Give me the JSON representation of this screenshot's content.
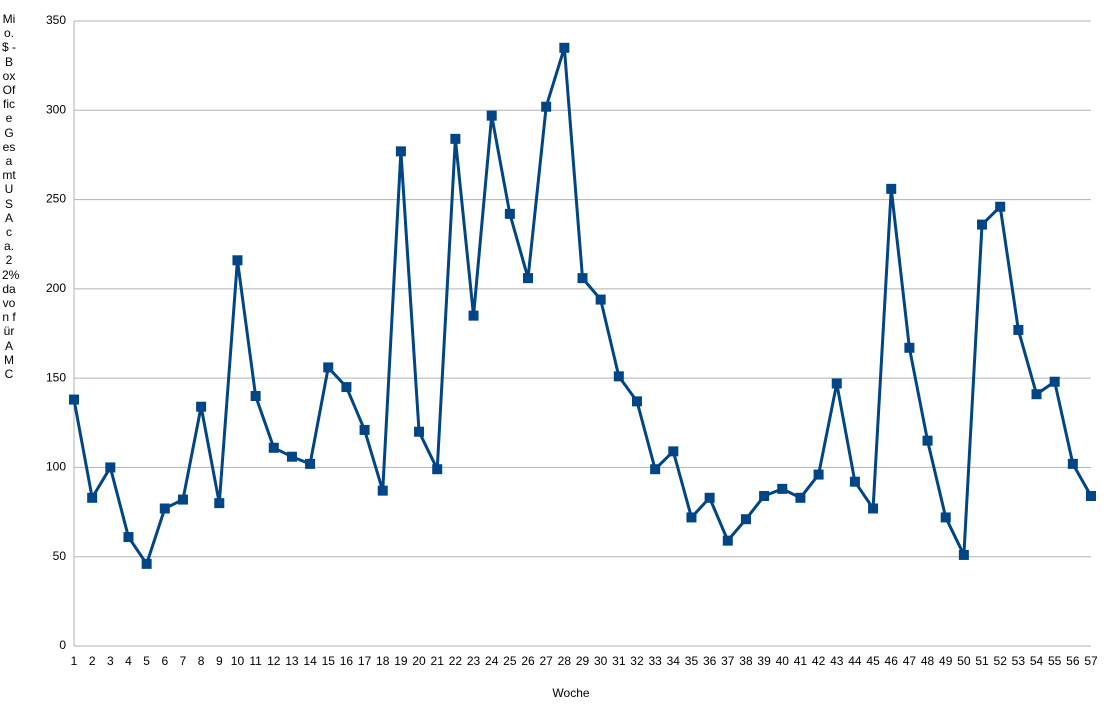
{
  "chart_data": {
    "type": "line",
    "y_label": "Mio. $ - BoxOffice Gesamt USA ca. 22% davon für AMC",
    "x_label": "Woche",
    "categories": [
      "1",
      "2",
      "3",
      "4",
      "5",
      "6",
      "7",
      "8",
      "9",
      "10",
      "11",
      "12",
      "13",
      "14",
      "15",
      "16",
      "17",
      "18",
      "19",
      "20",
      "21",
      "22",
      "23",
      "24",
      "25",
      "26",
      "27",
      "28",
      "29",
      "30",
      "31",
      "32",
      "33",
      "34",
      "35",
      "36",
      "37",
      "38",
      "39",
      "40",
      "41",
      "42",
      "43",
      "44",
      "45",
      "46",
      "47",
      "48",
      "49",
      "50",
      "51",
      "52",
      "53",
      "54",
      "55",
      "56",
      "57"
    ],
    "series": [
      {
        "name": "BoxOffice",
        "color": "#004586",
        "values": [
          138,
          83,
          100,
          61,
          46,
          77,
          82,
          134,
          80,
          216,
          140,
          111,
          106,
          102,
          156,
          145,
          121,
          87,
          277,
          120,
          99,
          284,
          185,
          297,
          242,
          206,
          302,
          335,
          206,
          194,
          151,
          137,
          99,
          109,
          72,
          83,
          59,
          71,
          84,
          88,
          83,
          96,
          147,
          92,
          77,
          256,
          167,
          115,
          72,
          51,
          236,
          246,
          177,
          141,
          148,
          102,
          84
        ]
      }
    ],
    "ylim": [
      0,
      350
    ],
    "yticks": [
      0,
      50,
      100,
      150,
      200,
      250,
      300,
      350
    ],
    "grid": true
  }
}
